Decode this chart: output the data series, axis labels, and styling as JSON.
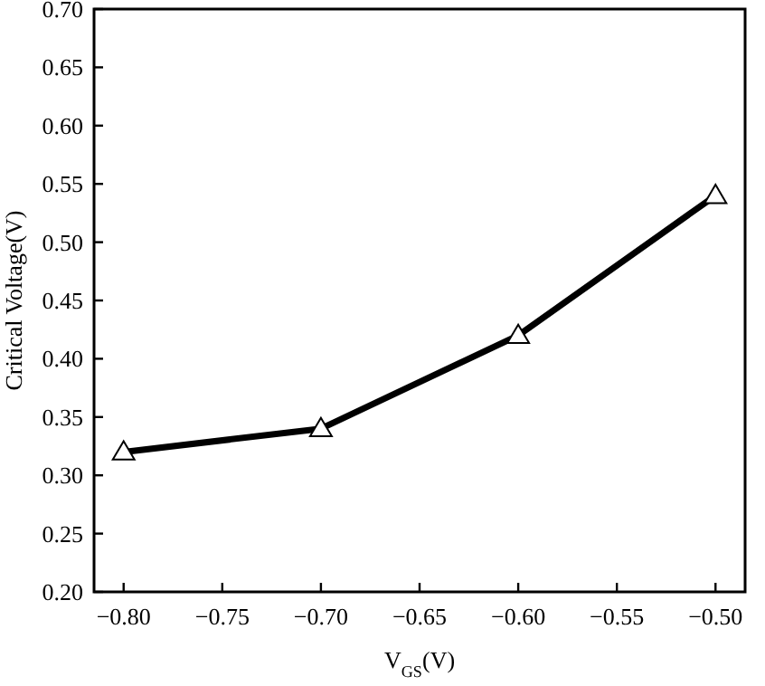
{
  "chart_data": {
    "type": "line",
    "xlabel": "V$_{GS}$(V)",
    "ylabel": "Critical Voltage(V)",
    "x": [
      -0.8,
      -0.7,
      -0.6,
      -0.5
    ],
    "series": [
      {
        "color": "#000000",
        "values": [
          0.32,
          0.34,
          0.42,
          0.54
        ]
      }
    ],
    "xlim": [
      -0.815,
      -0.485
    ],
    "xticks": [
      {
        "value": -0.8,
        "label": "−0.80"
      },
      {
        "value": -0.75,
        "label": "−0.75"
      },
      {
        "value": -0.7,
        "label": "−0.70"
      },
      {
        "value": -0.65,
        "label": "−0.65"
      },
      {
        "value": -0.6,
        "label": "−0.60"
      },
      {
        "value": -0.55,
        "label": "−0.55"
      },
      {
        "value": -0.5,
        "label": "−0.50"
      }
    ],
    "ylim": [
      0.2,
      0.7
    ],
    "yticks": [
      {
        "value": 0.2,
        "label": "0.20"
      },
      {
        "value": 0.25,
        "label": "0.25"
      },
      {
        "value": 0.3,
        "label": "0.30"
      },
      {
        "value": 0.35,
        "label": "0.35"
      },
      {
        "value": 0.4,
        "label": "0.40"
      },
      {
        "value": 0.45,
        "label": "0.45"
      },
      {
        "value": 0.5,
        "label": "0.50"
      },
      {
        "value": 0.55,
        "label": "0.55"
      },
      {
        "value": 0.6,
        "label": "0.60"
      },
      {
        "value": 0.65,
        "label": "0.65"
      },
      {
        "value": 0.7,
        "label": "0.70"
      }
    ],
    "marker": "triangle",
    "line_style": "solid"
  }
}
